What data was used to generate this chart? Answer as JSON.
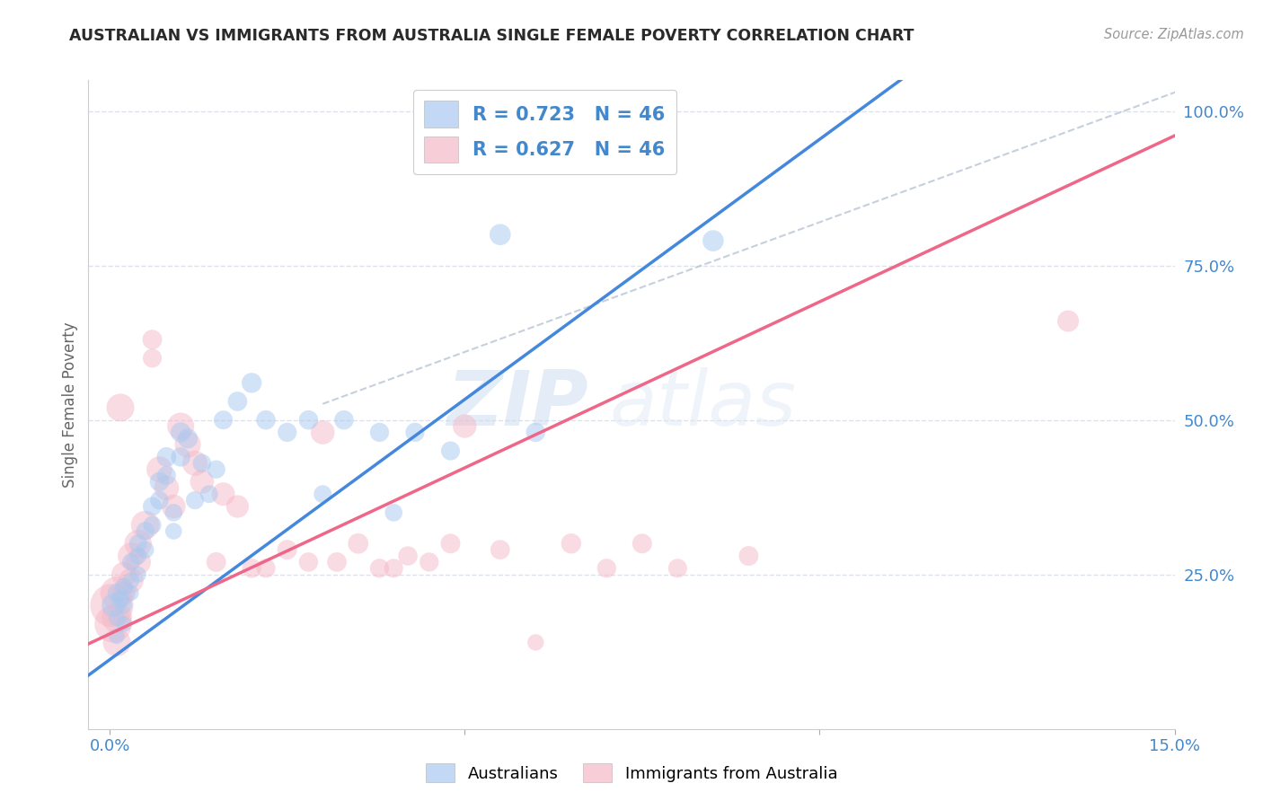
{
  "title": "AUSTRALIAN VS IMMIGRANTS FROM AUSTRALIA SINGLE FEMALE POVERTY CORRELATION CHART",
  "source": "Source: ZipAtlas.com",
  "ylabel": "Single Female Poverty",
  "xlim": [
    0.0,
    0.15
  ],
  "ylim": [
    0.0,
    1.05
  ],
  "ytick_labels_right": [
    "25.0%",
    "50.0%",
    "75.0%",
    "100.0%"
  ],
  "ytick_vals_right": [
    0.25,
    0.5,
    0.75,
    1.0
  ],
  "legend_label1": "Australians",
  "legend_label2": "Immigrants from Australia",
  "R1": 0.723,
  "N1": 46,
  "R2": 0.627,
  "N2": 46,
  "color_blue": "#a8c8f0",
  "color_pink": "#f5b8c8",
  "line_color_blue": "#4488dd",
  "line_color_pink": "#ee6688",
  "diagonal_color": "#b8c4d4",
  "watermark_zip": "ZIP",
  "watermark_atlas": "atlas",
  "background_color": "#ffffff",
  "grid_color": "#dde2ea",
  "blue_x": [
    0.0005,
    0.001,
    0.001,
    0.001,
    0.0015,
    0.002,
    0.002,
    0.002,
    0.003,
    0.003,
    0.003,
    0.004,
    0.004,
    0.004,
    0.005,
    0.005,
    0.006,
    0.006,
    0.007,
    0.007,
    0.008,
    0.008,
    0.009,
    0.009,
    0.01,
    0.01,
    0.011,
    0.012,
    0.013,
    0.014,
    0.015,
    0.016,
    0.018,
    0.02,
    0.022,
    0.025,
    0.028,
    0.03,
    0.033,
    0.038,
    0.04,
    0.043,
    0.048,
    0.055,
    0.06,
    0.085
  ],
  "blue_y": [
    0.2,
    0.22,
    0.18,
    0.15,
    0.21,
    0.23,
    0.2,
    0.17,
    0.27,
    0.24,
    0.22,
    0.3,
    0.28,
    0.25,
    0.32,
    0.29,
    0.36,
    0.33,
    0.4,
    0.37,
    0.44,
    0.41,
    0.35,
    0.32,
    0.48,
    0.44,
    0.47,
    0.37,
    0.43,
    0.38,
    0.42,
    0.5,
    0.53,
    0.56,
    0.5,
    0.48,
    0.5,
    0.38,
    0.5,
    0.48,
    0.35,
    0.48,
    0.45,
    0.8,
    0.48,
    0.79
  ],
  "pink_x": [
    0.0003,
    0.0005,
    0.001,
    0.001,
    0.001,
    0.0015,
    0.002,
    0.002,
    0.003,
    0.003,
    0.004,
    0.004,
    0.005,
    0.006,
    0.006,
    0.007,
    0.008,
    0.009,
    0.01,
    0.011,
    0.012,
    0.013,
    0.015,
    0.016,
    0.018,
    0.02,
    0.022,
    0.025,
    0.028,
    0.03,
    0.032,
    0.035,
    0.038,
    0.04,
    0.042,
    0.045,
    0.048,
    0.05,
    0.055,
    0.06,
    0.065,
    0.07,
    0.075,
    0.08,
    0.09,
    0.135
  ],
  "pink_y": [
    0.2,
    0.17,
    0.22,
    0.18,
    0.14,
    0.52,
    0.25,
    0.22,
    0.28,
    0.24,
    0.3,
    0.27,
    0.33,
    0.63,
    0.6,
    0.42,
    0.39,
    0.36,
    0.49,
    0.46,
    0.43,
    0.4,
    0.27,
    0.38,
    0.36,
    0.26,
    0.26,
    0.29,
    0.27,
    0.48,
    0.27,
    0.3,
    0.26,
    0.26,
    0.28,
    0.27,
    0.3,
    0.49,
    0.29,
    0.14,
    0.3,
    0.26,
    0.3,
    0.26,
    0.28,
    0.66
  ],
  "blue_sizes": [
    350,
    220,
    180,
    160,
    200,
    200,
    180,
    160,
    200,
    180,
    160,
    210,
    190,
    170,
    220,
    200,
    230,
    210,
    240,
    220,
    250,
    230,
    200,
    180,
    260,
    240,
    255,
    210,
    220,
    205,
    215,
    230,
    245,
    260,
    240,
    235,
    240,
    205,
    240,
    235,
    200,
    235,
    230,
    290,
    240,
    290
  ],
  "pink_sizes": [
    1200,
    900,
    700,
    600,
    500,
    500,
    400,
    350,
    450,
    400,
    480,
    420,
    520,
    250,
    230,
    430,
    400,
    370,
    470,
    440,
    410,
    370,
    250,
    350,
    330,
    240,
    235,
    250,
    240,
    370,
    245,
    270,
    235,
    230,
    240,
    235,
    250,
    360,
    245,
    175,
    260,
    235,
    250,
    230,
    250,
    300
  ]
}
